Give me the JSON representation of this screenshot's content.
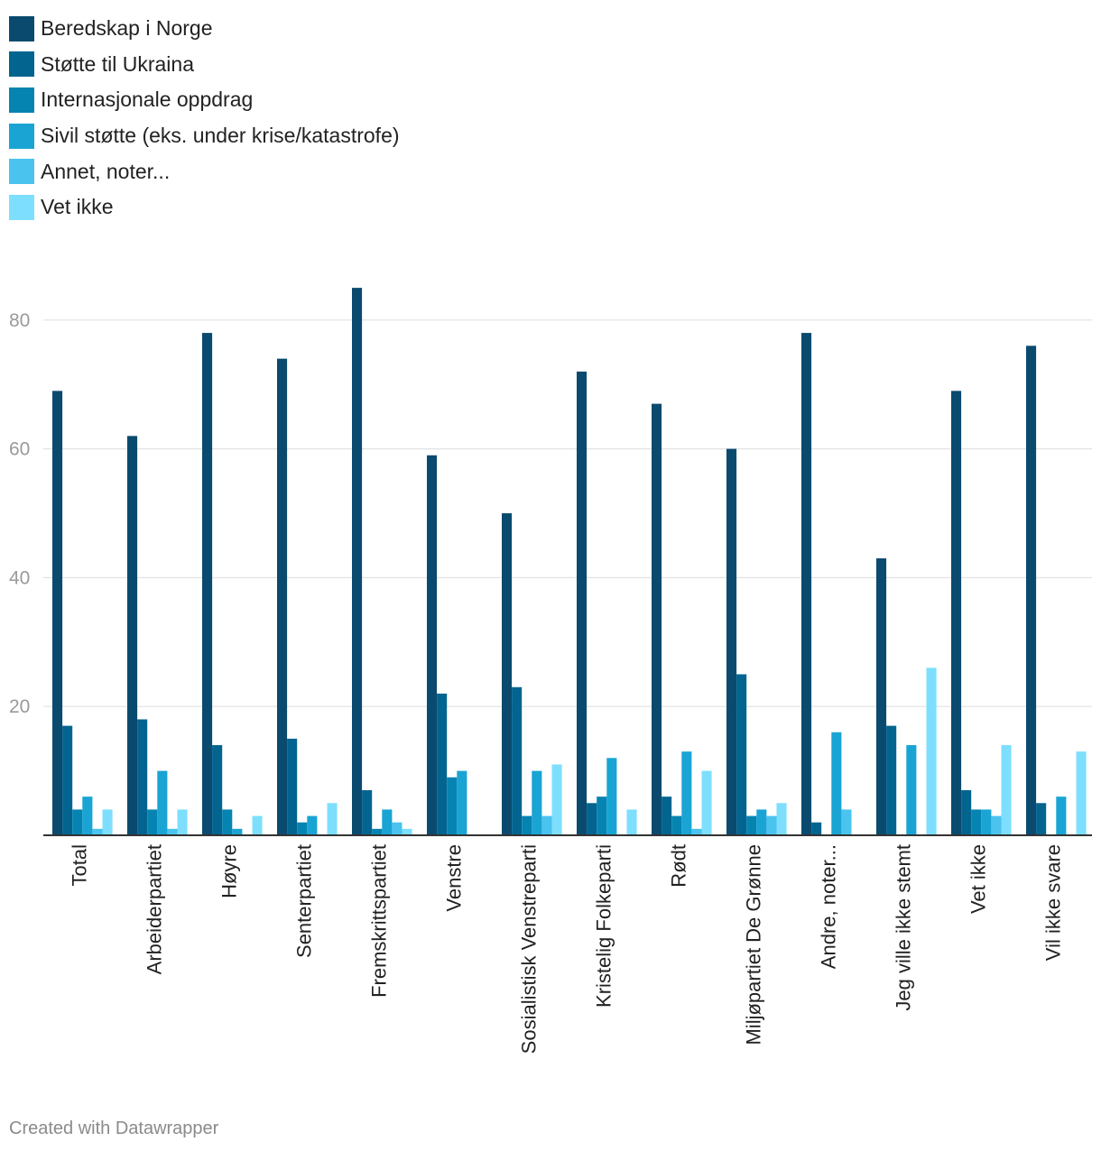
{
  "chart_data": {
    "type": "bar",
    "title": "",
    "xlabel": "",
    "ylabel": "",
    "ylim": [
      0,
      90
    ],
    "yticks": [
      20,
      40,
      60,
      80
    ],
    "grid": true,
    "legend_position": "top-left",
    "categories": [
      "Total",
      "Arbeiderpartiet",
      "Høyre",
      "Senterpartiet",
      "Fremskrittspartiet",
      "Venstre",
      "Sosialistisk Venstreparti",
      "Kristelig Folkeparti",
      "Rødt",
      "Miljøpartiet De Grønne",
      "Andre, noter...",
      "Jeg ville ikke stemt",
      "Vet ikke",
      "Vil ikke svare"
    ],
    "series": [
      {
        "name": "Beredskap i Norge",
        "color": "#0b4a6f",
        "values": [
          69,
          62,
          78,
          74,
          85,
          59,
          50,
          72,
          67,
          60,
          78,
          43,
          69,
          76
        ]
      },
      {
        "name": "Støtte til Ukraina",
        "color": "#02648f",
        "values": [
          17,
          18,
          14,
          15,
          7,
          22,
          23,
          5,
          6,
          25,
          2,
          17,
          7,
          5
        ]
      },
      {
        "name": "Internasjonale oppdrag",
        "color": "#0684b1",
        "values": [
          4,
          4,
          4,
          2,
          1,
          9,
          3,
          6,
          3,
          3,
          0,
          0,
          4,
          0
        ]
      },
      {
        "name": "Sivil støtte (eks. under krise/katastrofe)",
        "color": "#19a4d4",
        "values": [
          6,
          10,
          1,
          3,
          4,
          10,
          10,
          12,
          13,
          4,
          16,
          14,
          4,
          6
        ]
      },
      {
        "name": "Annet, noter...",
        "color": "#4ac3ee",
        "values": [
          1,
          1,
          0,
          0,
          2,
          0,
          3,
          0,
          1,
          3,
          4,
          0,
          3,
          0
        ]
      },
      {
        "name": "Vet ikke",
        "color": "#7ddffd",
        "values": [
          4,
          4,
          3,
          5,
          1,
          0,
          11,
          4,
          10,
          5,
          0,
          26,
          14,
          13
        ]
      }
    ]
  },
  "footer": {
    "credit": "Created with Datawrapper"
  }
}
